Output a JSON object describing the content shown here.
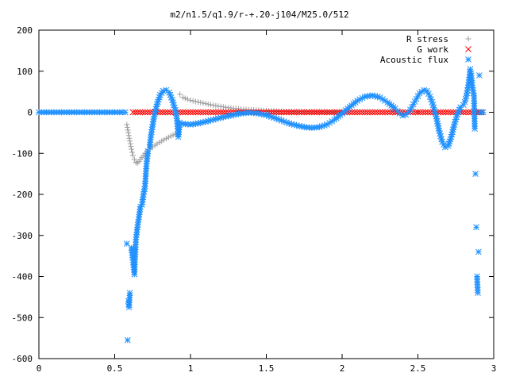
{
  "chart_data": {
    "type": "scatter",
    "title": "m2/n1.5/q1.9/r-+.20-j104/M25.0/512",
    "xlabel": "",
    "ylabel": "",
    "xlim": [
      0,
      3
    ],
    "ylim": [
      -600,
      200
    ],
    "x_ticks": [
      "0",
      "0.5",
      "1",
      "1.5",
      "2",
      "2.5",
      "3"
    ],
    "y_ticks": [
      "200",
      "100",
      "0",
      "-100",
      "-200",
      "-300",
      "-400",
      "-500",
      "-600"
    ],
    "grid": false,
    "legend_position": "top-right",
    "series": [
      {
        "name": "R stress",
        "marker": "+",
        "color": "#a0a0a0",
        "points": [
          [
            0.58,
            -30
          ],
          [
            0.59,
            -50
          ],
          [
            0.6,
            -70
          ],
          [
            0.61,
            -90
          ],
          [
            0.62,
            -105
          ],
          [
            0.63,
            -115
          ],
          [
            0.64,
            -122
          ],
          [
            0.65,
            -124
          ],
          [
            0.66,
            -120
          ],
          [
            0.68,
            -110
          ],
          [
            0.7,
            -100
          ],
          [
            0.72,
            -92
          ],
          [
            0.75,
            -84
          ],
          [
            0.78,
            -77
          ],
          [
            0.81,
            -70
          ],
          [
            0.84,
            -64
          ],
          [
            0.87,
            -58
          ],
          [
            0.9,
            -53
          ],
          [
            0.92,
            -50
          ],
          [
            0.93,
            44
          ],
          [
            0.95,
            36
          ],
          [
            0.98,
            32
          ],
          [
            1.0,
            29
          ],
          [
            1.05,
            25
          ],
          [
            1.1,
            21
          ],
          [
            1.15,
            17
          ],
          [
            1.2,
            14
          ],
          [
            1.25,
            11
          ],
          [
            1.3,
            9
          ],
          [
            1.35,
            7
          ],
          [
            1.4,
            6
          ],
          [
            1.45,
            5
          ],
          [
            1.5,
            4
          ],
          [
            1.55,
            3
          ],
          [
            1.6,
            2
          ],
          [
            1.7,
            1
          ],
          [
            1.8,
            1
          ],
          [
            2.0,
            0
          ],
          [
            2.5,
            0
          ],
          [
            2.9,
            0
          ]
        ]
      },
      {
        "name": "G work",
        "marker": "x",
        "color": "#ff0000",
        "points": [
          [
            0.62,
            0
          ],
          [
            0.7,
            0
          ],
          [
            0.8,
            0
          ],
          [
            0.9,
            0
          ],
          [
            1.0,
            0
          ],
          [
            1.2,
            0
          ],
          [
            1.4,
            0
          ],
          [
            1.6,
            0
          ],
          [
            1.8,
            0
          ],
          [
            2.0,
            0
          ],
          [
            2.2,
            0
          ],
          [
            2.4,
            0
          ],
          [
            2.6,
            0
          ],
          [
            2.8,
            0
          ],
          [
            2.92,
            0
          ]
        ]
      },
      {
        "name": "Acoustic flux",
        "marker": "*",
        "color": "#1e90ff",
        "points": [
          [
            0.0,
            0
          ],
          [
            0.2,
            0
          ],
          [
            0.4,
            0
          ],
          [
            0.55,
            0
          ],
          [
            0.57,
            0
          ],
          [
            0.58,
            -320
          ],
          [
            0.585,
            -555
          ],
          [
            0.59,
            -460
          ],
          [
            0.595,
            -475
          ],
          [
            0.6,
            -440
          ],
          [
            0.61,
            -330
          ],
          [
            0.62,
            -360
          ],
          [
            0.63,
            -395
          ],
          [
            0.64,
            -310
          ],
          [
            0.65,
            -280
          ],
          [
            0.66,
            -255
          ],
          [
            0.67,
            -230
          ],
          [
            0.68,
            -225
          ],
          [
            0.69,
            -200
          ],
          [
            0.7,
            -180
          ],
          [
            0.71,
            -125
          ],
          [
            0.72,
            -95
          ],
          [
            0.73,
            -85
          ],
          [
            0.74,
            -55
          ],
          [
            0.76,
            -10
          ],
          [
            0.78,
            20
          ],
          [
            0.8,
            42
          ],
          [
            0.82,
            52
          ],
          [
            0.84,
            54
          ],
          [
            0.86,
            48
          ],
          [
            0.88,
            30
          ],
          [
            0.9,
            5
          ],
          [
            0.91,
            -15
          ],
          [
            0.92,
            -60
          ],
          [
            0.93,
            -25
          ],
          [
            0.95,
            -28
          ],
          [
            1.0,
            -30
          ],
          [
            1.05,
            -27
          ],
          [
            1.1,
            -23
          ],
          [
            1.15,
            -18
          ],
          [
            1.2,
            -13
          ],
          [
            1.25,
            -9
          ],
          [
            1.3,
            -5
          ],
          [
            1.35,
            -2
          ],
          [
            1.4,
            -1
          ],
          [
            1.45,
            -3
          ],
          [
            1.5,
            -7
          ],
          [
            1.55,
            -13
          ],
          [
            1.6,
            -20
          ],
          [
            1.65,
            -27
          ],
          [
            1.7,
            -32
          ],
          [
            1.75,
            -36
          ],
          [
            1.8,
            -38
          ],
          [
            1.85,
            -36
          ],
          [
            1.9,
            -30
          ],
          [
            1.95,
            -18
          ],
          [
            2.0,
            -3
          ],
          [
            2.05,
            13
          ],
          [
            2.1,
            28
          ],
          [
            2.15,
            38
          ],
          [
            2.2,
            41
          ],
          [
            2.25,
            36
          ],
          [
            2.3,
            24
          ],
          [
            2.35,
            9
          ],
          [
            2.38,
            -3
          ],
          [
            2.4,
            -8
          ],
          [
            2.42,
            -6
          ],
          [
            2.45,
            6
          ],
          [
            2.48,
            26
          ],
          [
            2.51,
            46
          ],
          [
            2.54,
            54
          ],
          [
            2.56,
            52
          ],
          [
            2.58,
            38
          ],
          [
            2.6,
            18
          ],
          [
            2.62,
            -10
          ],
          [
            2.64,
            -45
          ],
          [
            2.66,
            -72
          ],
          [
            2.68,
            -85
          ],
          [
            2.7,
            -82
          ],
          [
            2.72,
            -60
          ],
          [
            2.74,
            -30
          ],
          [
            2.76,
            -5
          ],
          [
            2.78,
            12
          ],
          [
            2.8,
            18
          ],
          [
            2.81,
            25
          ],
          [
            2.82,
            40
          ],
          [
            2.83,
            60
          ],
          [
            2.84,
            85
          ],
          [
            2.845,
            105
          ],
          [
            2.85,
            95
          ],
          [
            2.86,
            60
          ],
          [
            2.87,
            40
          ],
          [
            2.875,
            -40
          ],
          [
            2.88,
            -150
          ],
          [
            2.885,
            -280
          ],
          [
            2.89,
            -400
          ],
          [
            2.895,
            -440
          ],
          [
            2.9,
            -340
          ],
          [
            2.905,
            90
          ],
          [
            2.91,
            0
          ],
          [
            2.93,
            0
          ]
        ]
      }
    ]
  }
}
